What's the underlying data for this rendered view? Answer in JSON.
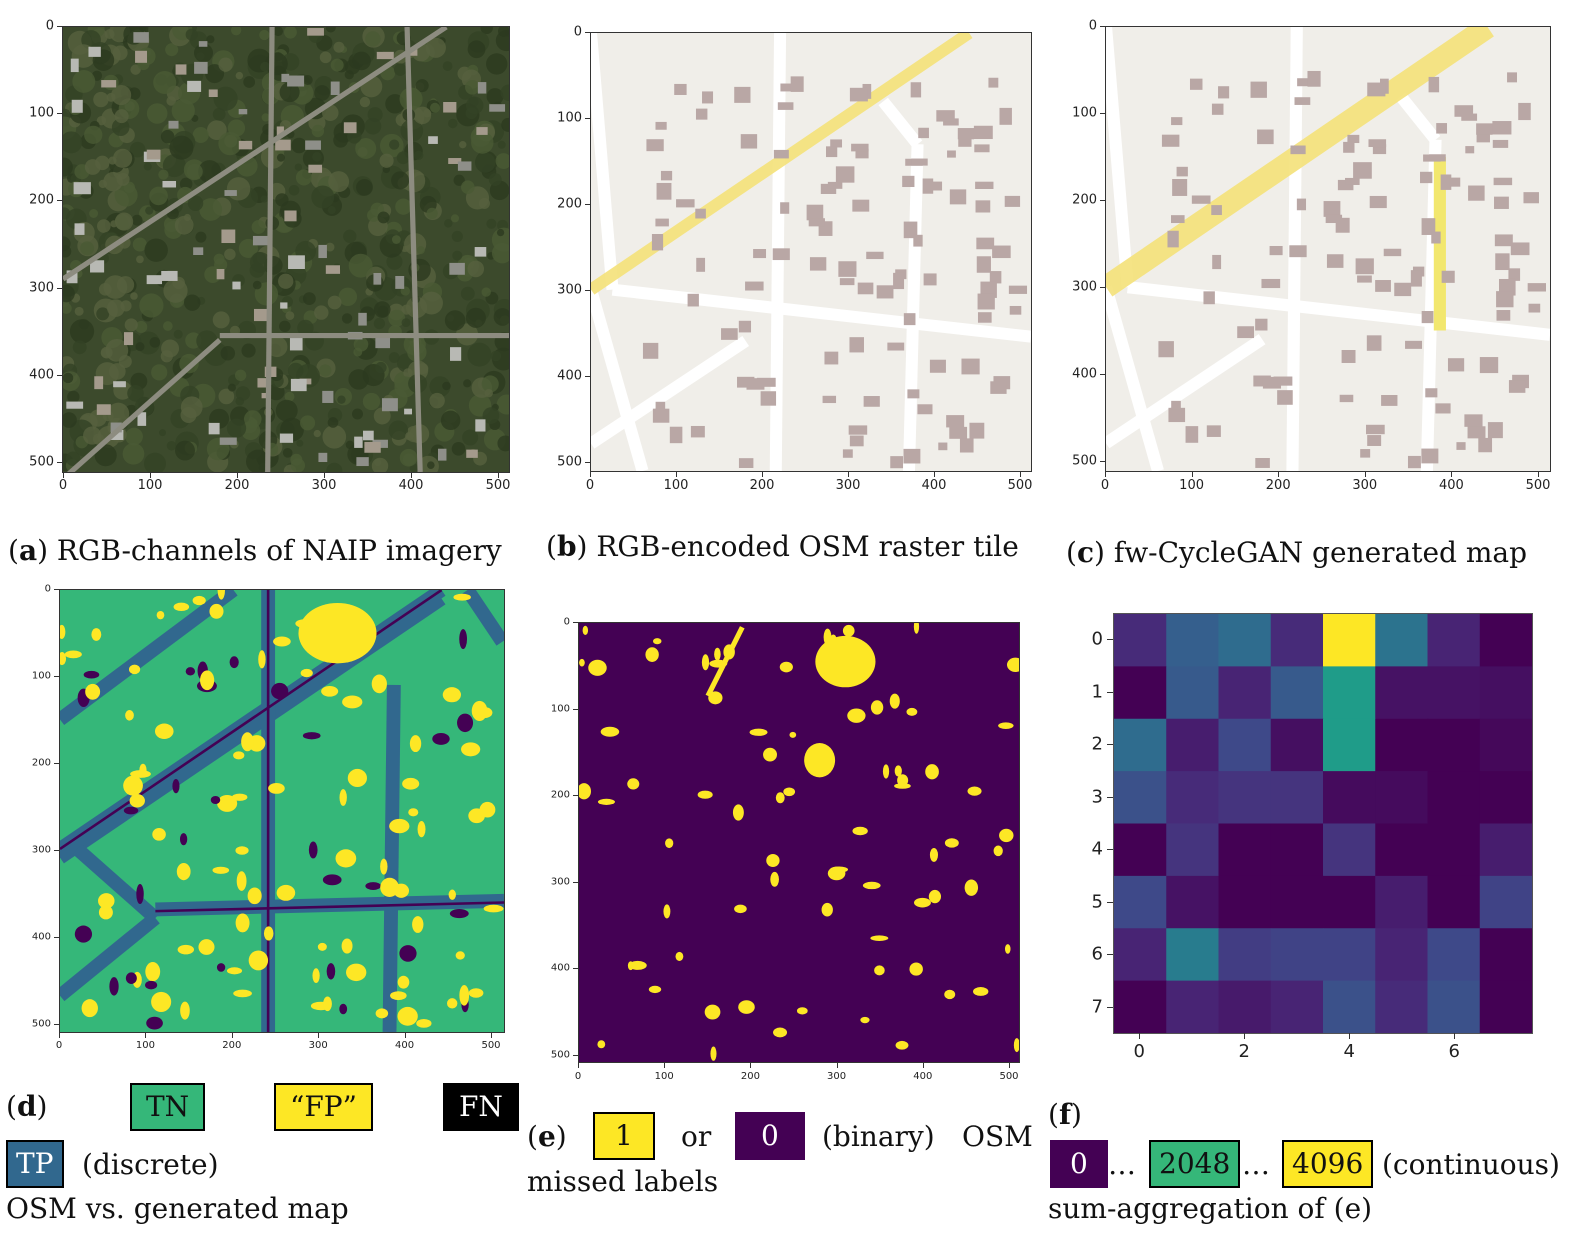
{
  "colors": {
    "tn": "#35b779",
    "fp": "#fde725",
    "fn": "#000000",
    "tp": "#31688e",
    "purple": "#440154",
    "osm_bg": "#f0eee9",
    "building": "#b9a7a5",
    "road_yellow": "#f5e27a"
  },
  "panels": [
    {
      "letter": "a",
      "caption": "RGB-channels of NAIP imagery",
      "x_ticks": [
        "0",
        "100",
        "200",
        "300",
        "400",
        "500"
      ],
      "y_ticks": [
        "0",
        "100",
        "200",
        "300",
        "400",
        "500"
      ]
    },
    {
      "letter": "b",
      "caption": "RGB-encoded OSM raster tile",
      "x_ticks": [
        "0",
        "100",
        "200",
        "300",
        "400",
        "500"
      ],
      "y_ticks": [
        "0",
        "100",
        "200",
        "300",
        "400",
        "500"
      ]
    },
    {
      "letter": "c",
      "caption": "fw-CycleGAN generated map",
      "x_ticks": [
        "0",
        "100",
        "200",
        "300",
        "400",
        "500"
      ],
      "y_ticks": [
        "0",
        "100",
        "200",
        "300",
        "400",
        "500"
      ]
    },
    {
      "letter": "d",
      "x_ticks": [
        "0",
        "100",
        "200",
        "300",
        "400",
        "500"
      ],
      "y_ticks": [
        "0",
        "100",
        "200",
        "300",
        "400",
        "500"
      ]
    },
    {
      "letter": "e",
      "x_ticks": [
        "0",
        "100",
        "200",
        "300",
        "400",
        "500"
      ],
      "y_ticks": [
        "0",
        "100",
        "200",
        "300",
        "400",
        "500"
      ]
    }
  ],
  "legend_d": {
    "letter": "d",
    "tn": "TN",
    "fp": "“FP”",
    "fn": "FN",
    "tp": "TP",
    "kind": "(discrete)",
    "desc": "OSM vs. generated map"
  },
  "legend_e": {
    "letter": "e",
    "one": "1",
    "or": "or",
    "zero": "0",
    "kind": "(binary)",
    "desc1": "OSM",
    "desc2": "missed labels"
  },
  "legend_f": {
    "letter": "f",
    "min": "0",
    "ellipsis": "…",
    "mid": "2048",
    "max": "4096",
    "kind": "(continuous)",
    "desc": "sum-aggregation of (e)"
  },
  "chart_data": {
    "type": "heatmap",
    "colormap": "viridis",
    "range": [
      0,
      4096
    ],
    "x_ticks": [
      "0",
      "2",
      "4",
      "6"
    ],
    "y_ticks": [
      "0",
      "1",
      "2",
      "3",
      "4",
      "5",
      "6",
      "7"
    ],
    "values": [
      [
        490,
        1230,
        1430,
        490,
        4096,
        1560,
        410,
        0
      ],
      [
        0,
        1150,
        410,
        1150,
        2250,
        200,
        200,
        160
      ],
      [
        1430,
        330,
        900,
        160,
        2250,
        0,
        0,
        80
      ],
      [
        1020,
        490,
        610,
        610,
        120,
        120,
        0,
        0
      ],
      [
        0,
        610,
        0,
        0,
        610,
        0,
        0,
        330
      ],
      [
        900,
        200,
        0,
        0,
        0,
        330,
        0,
        820
      ],
      [
        410,
        1720,
        740,
        820,
        820,
        410,
        900,
        0
      ],
      [
        0,
        410,
        290,
        410,
        1020,
        490,
        1020,
        0
      ]
    ]
  }
}
